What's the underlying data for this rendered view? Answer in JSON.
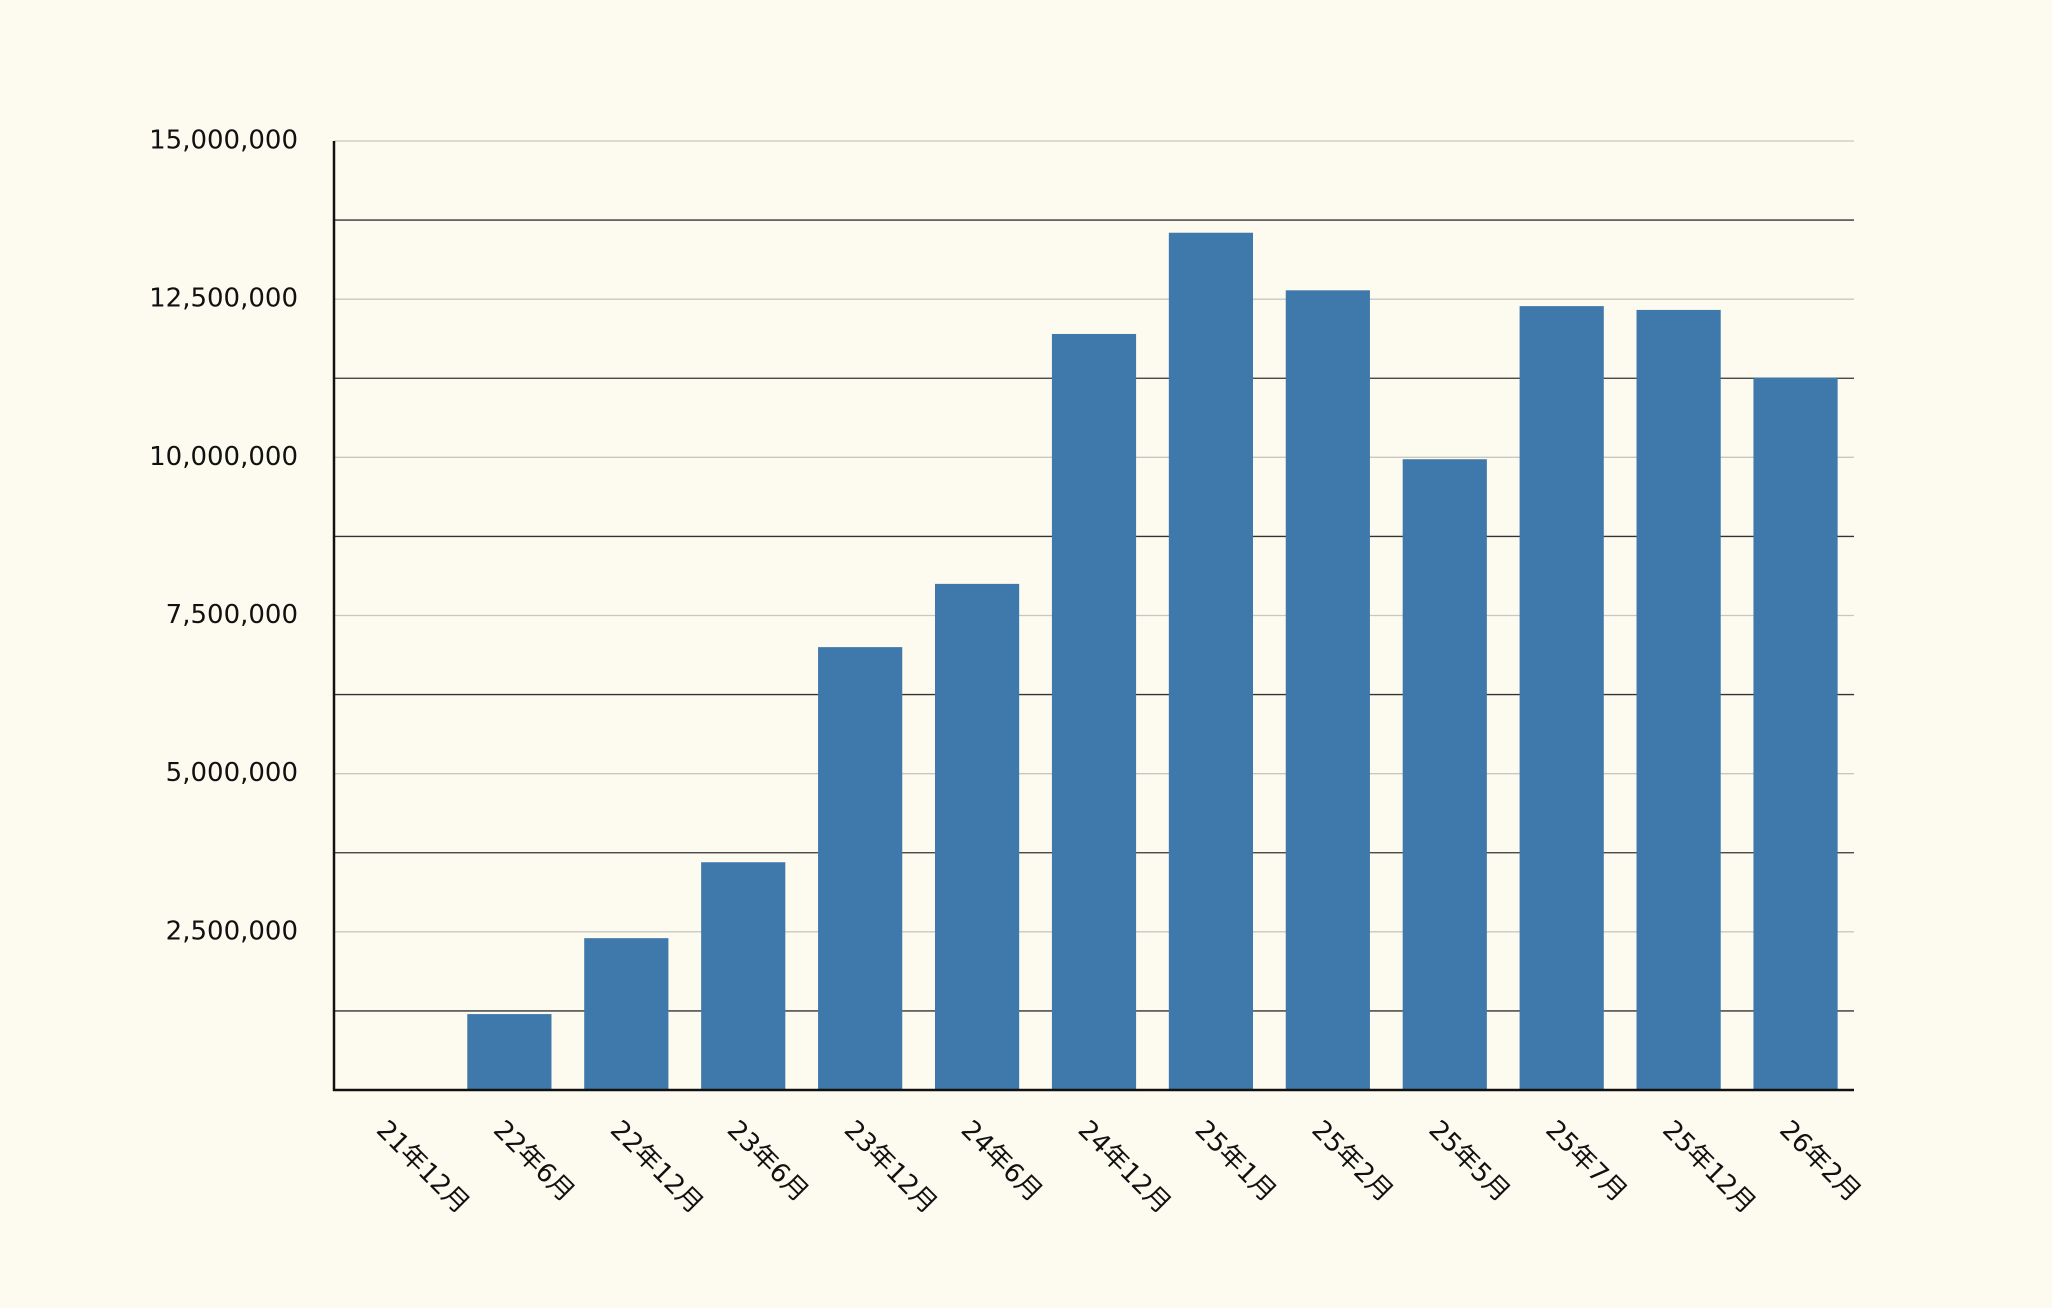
{
  "chart_data": {
    "type": "bar",
    "categories": [
      "21年12月",
      "22年6月",
      "22年12月",
      "23年6月",
      "23年12月",
      "24年6月",
      "24年12月",
      "25年1月",
      "25年2月",
      "25年5月",
      "25年7月",
      "25年12月",
      "26年2月"
    ],
    "values": [
      0,
      1200000,
      2400000,
      3600000,
      7000000,
      8000000,
      11950000,
      13550000,
      12640000,
      9970000,
      12390000,
      12330000,
      11260000
    ],
    "color": "#3f78ab",
    "ylim": [
      0,
      15000000
    ],
    "yticks": [
      {
        "value": 2500000,
        "label": "2,500,000"
      },
      {
        "value": 5000000,
        "label": "5,000,000"
      },
      {
        "value": 7500000,
        "label": "7,500,000"
      },
      {
        "value": 10000000,
        "label": "10,000,000"
      },
      {
        "value": 12500000,
        "label": "12,500,000"
      },
      {
        "value": 15000000,
        "label": "15,000,000"
      }
    ],
    "minor_yticks": [
      1250000,
      3750000,
      6250000,
      8750000,
      11250000,
      13750000
    ],
    "grid": true
  }
}
